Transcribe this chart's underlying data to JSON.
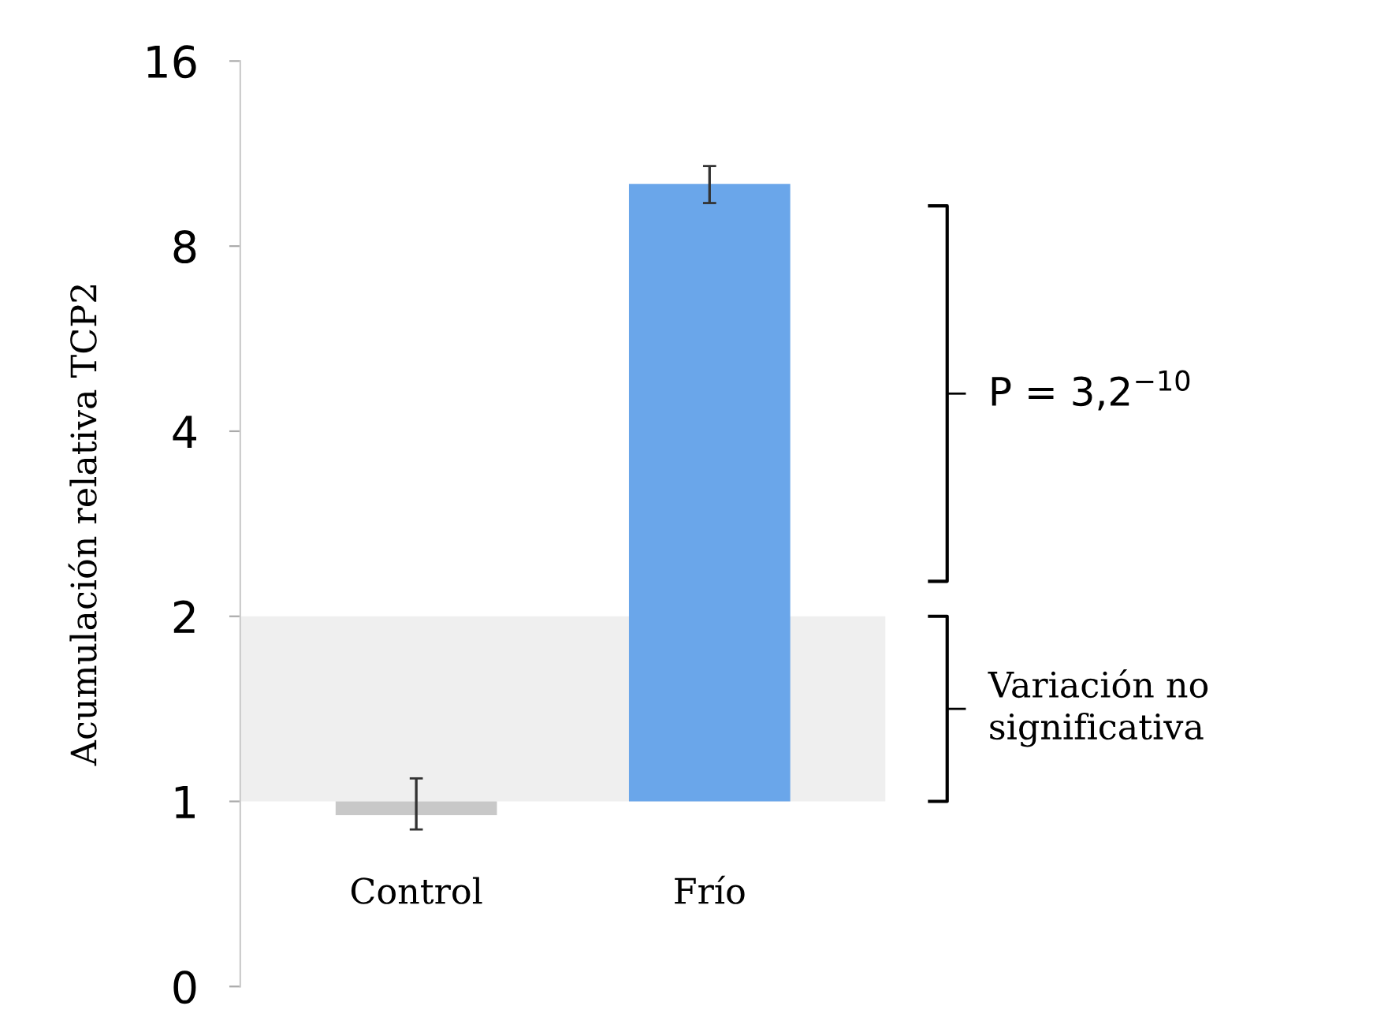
{
  "chart_data": {
    "type": "bar",
    "ylabel": "Acumulación relativa TCP2",
    "categories": [
      "Control",
      "Frío"
    ],
    "base": [
      1,
      1
    ],
    "values": [
      -0.05,
      9.1
    ],
    "colors": [
      "#c8c8c8",
      "#6aa6ea"
    ],
    "errors": [
      [
        0.9,
        1.09
      ],
      [
        9.4,
        10.8
      ]
    ],
    "log": true,
    "ylim": [
      0.5,
      16
    ],
    "yticks": [
      {
        "value": 0.5,
        "label": "0"
      },
      1,
      2,
      4,
      8,
      16
    ],
    "bands": [
      {
        "axis": "y",
        "from": 1,
        "to": 2,
        "label": "Variación no significativa",
        "color": "#efefef"
      }
    ],
    "annotations": [
      "P = 3,2$^{−10}$"
    ],
    "grid": false
  }
}
